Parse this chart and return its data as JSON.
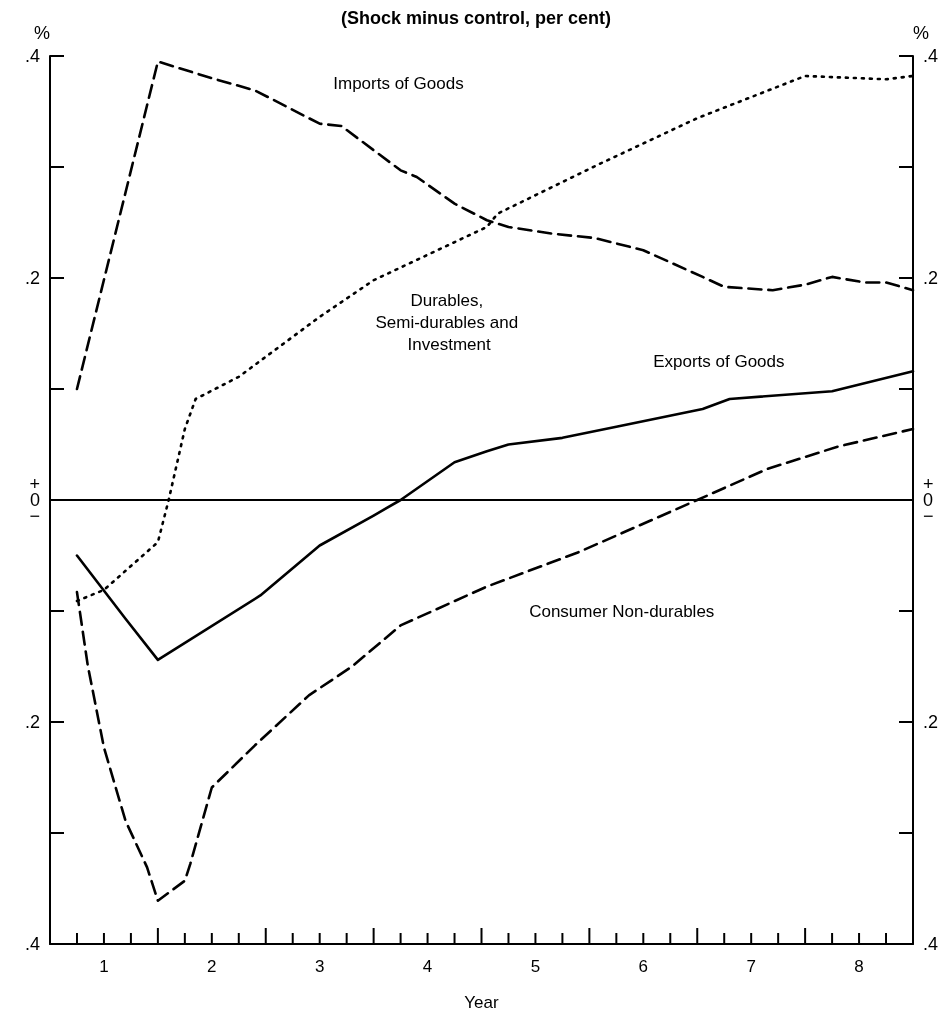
{
  "chart_data": {
    "type": "line",
    "title": "(Shock minus control, per cent)",
    "xlabel": "Year",
    "ylabel": "%",
    "y2label": "%",
    "xlim": [
      0.5,
      8.5
    ],
    "xticks": [
      {
        "value": 0.75,
        "label": null
      },
      1,
      {
        "value": 1.25,
        "label": null
      },
      {
        "value": 1.5,
        "label": null
      },
      {
        "value": 1.75,
        "label": null
      },
      2,
      {
        "value": 2.25,
        "label": null
      },
      {
        "value": 2.5,
        "label": null
      },
      {
        "value": 2.75,
        "label": null
      },
      3,
      {
        "value": 3.25,
        "label": null
      },
      {
        "value": 3.5,
        "label": null
      },
      {
        "value": 3.75,
        "label": null
      },
      4,
      {
        "value": 4.25,
        "label": null
      },
      {
        "value": 4.5,
        "label": null
      },
      {
        "value": 4.75,
        "label": null
      },
      5,
      {
        "value": 5.25,
        "label": null
      },
      {
        "value": 5.5,
        "label": null
      },
      {
        "value": 5.75,
        "label": null
      },
      6,
      {
        "value": 6.25,
        "label": null
      },
      {
        "value": 6.5,
        "label": null
      },
      {
        "value": 6.75,
        "label": null
      },
      7,
      {
        "value": 7.25,
        "label": null
      },
      {
        "value": 7.5,
        "label": null
      },
      {
        "value": 7.75,
        "label": null
      },
      8,
      {
        "value": 8.25,
        "label": null
      }
    ],
    "ylim": [
      -0.4,
      0.4
    ],
    "yticks": [
      {
        "value": -0.4,
        "label": ".4"
      },
      {
        "value": -0.3,
        "label": null
      },
      {
        "value": -0.2,
        "label": ".2"
      },
      {
        "value": -0.1,
        "label": null
      },
      {
        "value": 0,
        "label": "+\n0\n−"
      },
      {
        "value": 0.1,
        "label": null
      },
      {
        "value": 0.2,
        "label": ".2"
      },
      {
        "value": 0.3,
        "label": null
      },
      {
        "value": 0.4,
        "label": ".4"
      }
    ],
    "y2lim": [
      -0.4,
      0.4
    ],
    "y2ticks": [
      {
        "value": -0.4,
        "label": ".4"
      },
      {
        "value": -0.3,
        "label": null
      },
      {
        "value": -0.2,
        "label": ".2"
      },
      {
        "value": -0.1,
        "label": null
      },
      {
        "value": 0,
        "label": "+\n0\n−"
      },
      {
        "value": 0.1,
        "label": null
      },
      {
        "value": 0.2,
        "label": ".2"
      },
      {
        "value": 0.3,
        "label": null
      },
      {
        "value": 0.4,
        "label": ".4"
      }
    ],
    "grid": false,
    "legend": false,
    "marker": "none",
    "ref_lines": [
      {
        "axis": "y",
        "value": 0,
        "color": "#000000",
        "line_style": "solid"
      }
    ],
    "series": [
      {
        "name": "Imports of Goods",
        "color": "#000000",
        "line_style": "dashed",
        "x": [
          0.75,
          1.5,
          2.0,
          2.4,
          2.9,
          3.0,
          3.2,
          3.75,
          3.9,
          4.25,
          4.55,
          4.75,
          5.15,
          5.55,
          6.0,
          6.55,
          6.75,
          7.2,
          7.5,
          7.75,
          8.05,
          8.25,
          8.5
        ],
        "values": [
          0.1,
          0.395,
          0.38,
          0.369,
          0.344,
          0.339,
          0.337,
          0.297,
          0.291,
          0.267,
          0.252,
          0.246,
          0.24,
          0.236,
          0.225,
          0.201,
          0.192,
          0.189,
          0.194,
          0.201,
          0.196,
          0.196,
          0.189
        ]
      },
      {
        "name": "Durables, Semi-durables and Investment",
        "color": "#000000",
        "line_style": "dotted",
        "x": [
          0.75,
          1.0,
          1.5,
          1.6,
          1.75,
          1.85,
          2.25,
          3.0,
          3.5,
          4.55,
          4.65,
          5.6,
          6.5,
          7.5,
          8.25,
          8.5
        ],
        "values": [
          -0.091,
          -0.081,
          -0.038,
          0.0,
          0.064,
          0.091,
          0.111,
          0.165,
          0.198,
          0.246,
          0.258,
          0.303,
          0.344,
          0.382,
          0.379,
          0.382
        ]
      },
      {
        "name": "Exports of Goods",
        "color": "#000000",
        "line_style": "solid",
        "x": [
          0.75,
          1.2,
          1.5,
          2.45,
          3.0,
          3.5,
          3.75,
          4.25,
          4.55,
          4.75,
          5.25,
          5.75,
          6.55,
          6.8,
          7.75,
          8.5
        ],
        "values": [
          -0.05,
          -0.107,
          -0.144,
          -0.086,
          -0.041,
          -0.014,
          0.0,
          0.034,
          0.044,
          0.05,
          0.056,
          0.066,
          0.082,
          0.091,
          0.098,
          0.116
        ]
      },
      {
        "name": "Consumer Non-durables",
        "color": "#000000",
        "line_style": "dashed",
        "x": [
          0.75,
          0.85,
          1.0,
          1.2,
          1.4,
          1.5,
          1.75,
          1.8,
          2.0,
          2.4,
          2.9,
          3.3,
          3.75,
          4.55,
          5.4,
          6.5,
          7.15,
          7.8,
          8.5
        ],
        "values": [
          -0.083,
          -0.149,
          -0.223,
          -0.289,
          -0.331,
          -0.361,
          -0.343,
          -0.328,
          -0.259,
          -0.221,
          -0.176,
          -0.15,
          -0.113,
          -0.078,
          -0.047,
          0.0,
          0.028,
          0.048,
          0.064
        ]
      }
    ]
  }
}
